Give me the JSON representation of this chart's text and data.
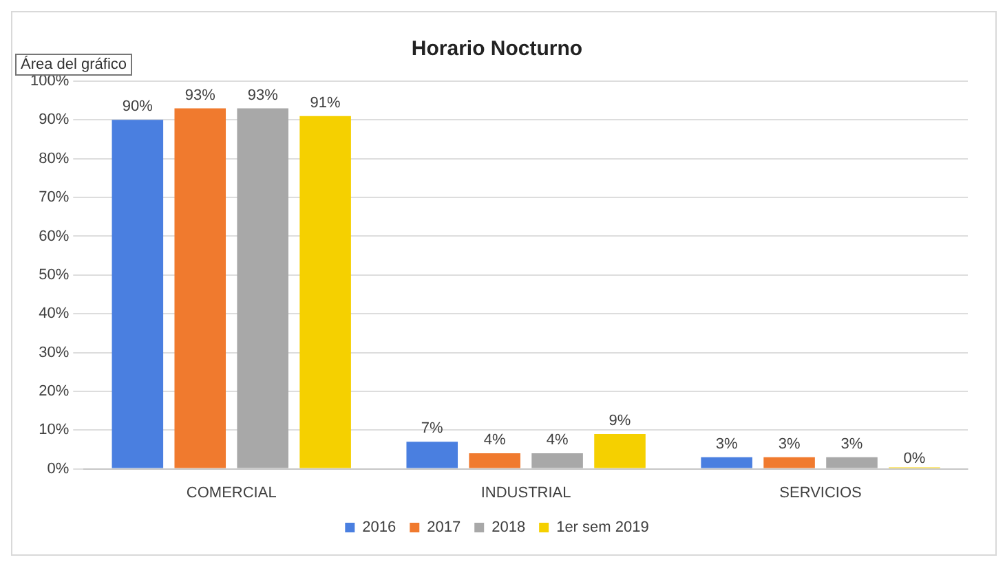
{
  "chart_data": {
    "type": "bar",
    "title": "Horario Nocturno",
    "annotations": [
      "Área del gráfico"
    ],
    "categories": [
      "COMERCIAL",
      "INDUSTRIAL",
      "SERVICIOS"
    ],
    "series": [
      {
        "name": "2016",
        "color": "#4a7fe0",
        "values": [
          90,
          7,
          3
        ],
        "value_labels": [
          "90%",
          "7%",
          "3%"
        ]
      },
      {
        "name": "2017",
        "color": "#f07a2e",
        "values": [
          93,
          4,
          3
        ],
        "value_labels": [
          "93%",
          "4%",
          "3%"
        ]
      },
      {
        "name": "2018",
        "color": "#a8a8a8",
        "values": [
          93,
          4,
          3
        ],
        "value_labels": [
          "93%",
          "4%",
          "3%"
        ]
      },
      {
        "name": "1er sem 2019",
        "color": "#f5d000",
        "values": [
          91,
          9,
          0
        ],
        "value_labels": [
          "91%",
          "9%",
          "0%"
        ]
      }
    ],
    "ylim": [
      0,
      100
    ],
    "yticks": [
      {
        "value": 0,
        "label": "0%"
      },
      {
        "value": 10,
        "label": "10%"
      },
      {
        "value": 20,
        "label": "20%"
      },
      {
        "value": 30,
        "label": "30%"
      },
      {
        "value": 40,
        "label": "40%"
      },
      {
        "value": 50,
        "label": "50%"
      },
      {
        "value": 60,
        "label": "60%"
      },
      {
        "value": 70,
        "label": "70%"
      },
      {
        "value": 80,
        "label": "80%"
      },
      {
        "value": 90,
        "label": "90%"
      },
      {
        "value": 100,
        "label": "100%"
      }
    ],
    "grid": "y",
    "legend": "bottom"
  }
}
